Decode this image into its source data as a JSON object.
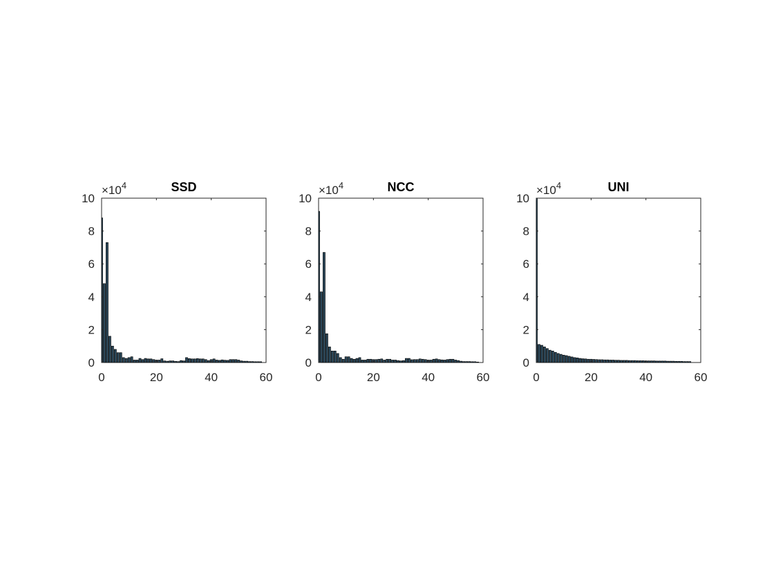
{
  "figure": {
    "background": "#ffffff"
  },
  "style": {
    "bar_fill": "#2a4658",
    "bar_edge": "#000000",
    "axis_color": "#262626"
  },
  "chart_data": [
    {
      "type": "bar",
      "title": "SSD",
      "xlabel": "",
      "ylabel": "",
      "xlim": [
        0,
        60
      ],
      "ylim": [
        0,
        100000
      ],
      "x_ticks": [
        0,
        20,
        40,
        60
      ],
      "y_ticks": [
        0,
        20000,
        40000,
        60000,
        80000,
        100000
      ],
      "y_tick_labels": [
        "0",
        "2",
        "4",
        "6",
        "8",
        "10"
      ],
      "y_exponent": "×10",
      "y_exponent_power": "4",
      "grid": false,
      "x": [
        0,
        1,
        2,
        3,
        4,
        5,
        6,
        7,
        8,
        9,
        10,
        11,
        12,
        13,
        14,
        15,
        16,
        17,
        18,
        19,
        20,
        21,
        22,
        23,
        24,
        25,
        26,
        27,
        28,
        29,
        30,
        31,
        32,
        33,
        34,
        35,
        36,
        37,
        38,
        39,
        40,
        41,
        42,
        43,
        44,
        45,
        46,
        47,
        48,
        49,
        50,
        51,
        52,
        53,
        54,
        55,
        56,
        57,
        58
      ],
      "values": [
        88000,
        48000,
        73000,
        16000,
        10000,
        8000,
        6000,
        6000,
        3000,
        2500,
        3000,
        3500,
        1500,
        1500,
        2500,
        1800,
        2500,
        2200,
        2200,
        1800,
        1500,
        1500,
        2300,
        1000,
        800,
        1000,
        1000,
        700,
        600,
        1200,
        1000,
        3000,
        2400,
        2200,
        2200,
        2400,
        2200,
        2200,
        1800,
        1200,
        1800,
        2200,
        1500,
        1300,
        1600,
        1400,
        1300,
        1800,
        1800,
        1800,
        1500,
        1000,
        800,
        800,
        600,
        600,
        500,
        500,
        500
      ]
    },
    {
      "type": "bar",
      "title": "NCC",
      "xlabel": "",
      "ylabel": "",
      "xlim": [
        0,
        60
      ],
      "ylim": [
        0,
        100000
      ],
      "x_ticks": [
        0,
        20,
        40,
        60
      ],
      "y_ticks": [
        0,
        20000,
        40000,
        60000,
        80000,
        100000
      ],
      "y_tick_labels": [
        "0",
        "2",
        "4",
        "6",
        "8",
        "10"
      ],
      "y_exponent": "×10",
      "y_exponent_power": "4",
      "grid": false,
      "x": [
        0,
        1,
        2,
        3,
        4,
        5,
        6,
        7,
        8,
        9,
        10,
        11,
        12,
        13,
        14,
        15,
        16,
        17,
        18,
        19,
        20,
        21,
        22,
        23,
        24,
        25,
        26,
        27,
        28,
        29,
        30,
        31,
        32,
        33,
        34,
        35,
        36,
        37,
        38,
        39,
        40,
        41,
        42,
        43,
        44,
        45,
        46,
        47,
        48,
        49,
        50,
        51,
        52,
        53,
        54,
        55,
        56,
        57,
        58
      ],
      "values": [
        92000,
        43000,
        67000,
        17500,
        9500,
        7000,
        7000,
        5500,
        3000,
        2000,
        3500,
        3500,
        2500,
        2000,
        2500,
        3000,
        1500,
        1500,
        2000,
        2000,
        1800,
        1800,
        2000,
        2200,
        1500,
        2000,
        2000,
        1500,
        1500,
        1200,
        1000,
        1200,
        2500,
        2500,
        1700,
        1800,
        1800,
        2200,
        2000,
        1800,
        1500,
        1500,
        2000,
        2200,
        1800,
        1600,
        1500,
        1800,
        2000,
        2000,
        1500,
        1200,
        800,
        600,
        600,
        600,
        500,
        500,
        300
      ]
    },
    {
      "type": "bar",
      "title": "UNI",
      "xlabel": "",
      "ylabel": "",
      "xlim": [
        0,
        60
      ],
      "ylim": [
        0,
        100000
      ],
      "x_ticks": [
        0,
        20,
        40,
        60
      ],
      "y_ticks": [
        0,
        20000,
        40000,
        60000,
        80000,
        100000
      ],
      "y_tick_labels": [
        "0",
        "2",
        "4",
        "6",
        "8",
        "10"
      ],
      "y_exponent": "×10",
      "y_exponent_power": "4",
      "grid": false,
      "x": [
        0,
        1,
        2,
        3,
        4,
        5,
        6,
        7,
        8,
        9,
        10,
        11,
        12,
        13,
        14,
        15,
        16,
        17,
        18,
        19,
        20,
        21,
        22,
        23,
        24,
        25,
        26,
        27,
        28,
        29,
        30,
        31,
        32,
        33,
        34,
        35,
        36,
        37,
        38,
        39,
        40,
        41,
        42,
        43,
        44,
        45,
        46,
        47,
        48,
        49,
        50,
        51,
        52,
        53,
        54,
        55,
        56
      ],
      "values": [
        100000,
        11000,
        10500,
        9500,
        8500,
        7500,
        7000,
        6200,
        5500,
        5000,
        4500,
        4200,
        3800,
        3400,
        3000,
        2800,
        2500,
        2300,
        2200,
        2000,
        2000,
        1900,
        1800,
        1700,
        1700,
        1600,
        1600,
        1500,
        1500,
        1400,
        1400,
        1300,
        1300,
        1300,
        1200,
        1200,
        1200,
        1100,
        1100,
        1100,
        1000,
        1000,
        1000,
        1000,
        900,
        900,
        900,
        900,
        800,
        800,
        800,
        700,
        700,
        700,
        600,
        600,
        600
      ]
    }
  ]
}
